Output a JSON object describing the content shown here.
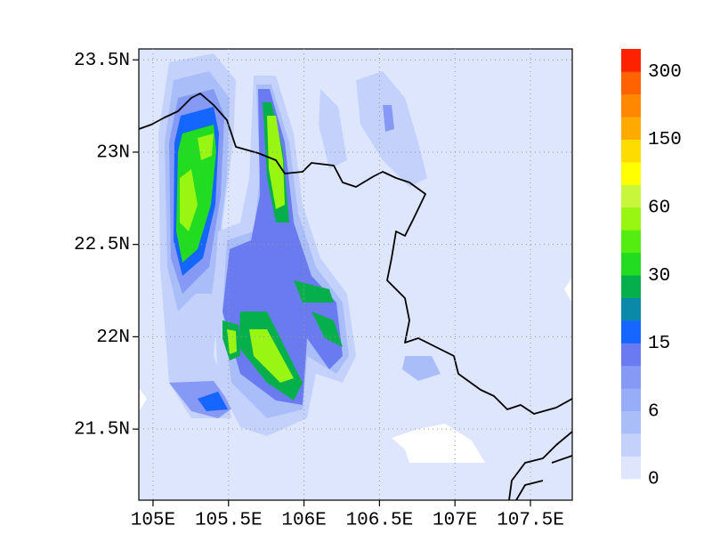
{
  "map": {
    "xlim": [
      104.906,
      107.777
    ],
    "ylim": [
      21.115,
      23.559
    ],
    "xticks": [
      {
        "value": 105,
        "label": "105E"
      },
      {
        "value": 105.5,
        "label": "105.5E"
      },
      {
        "value": 106,
        "label": "106E"
      },
      {
        "value": 106.5,
        "label": "106.5E"
      },
      {
        "value": 107,
        "label": "107E"
      },
      {
        "value": 107.5,
        "label": "107.5E"
      }
    ],
    "yticks": [
      {
        "value": 21.5,
        "label": "21.5N"
      },
      {
        "value": 22,
        "label": "22N"
      },
      {
        "value": 22.5,
        "label": "22.5N"
      },
      {
        "value": 23,
        "label": "23N"
      },
      {
        "value": 23.5,
        "label": "23.5N"
      }
    ],
    "grid": true,
    "colorbar": {
      "colors": [
        "#dde6fc",
        "#c4d2fb",
        "#a9bdf9",
        "#97adf7",
        "#8599f5",
        "#6a7bf1",
        "#1565ff",
        "#0a8aa8",
        "#05b04c",
        "#22dc22",
        "#55ec12",
        "#99f512",
        "#c8f63a",
        "#ffff00",
        "#ffdc00",
        "#ffaa00",
        "#ff8800",
        "#ff6200",
        "#ff2200"
      ],
      "ticks": [
        0,
        6,
        15,
        30,
        60,
        150,
        300
      ]
    }
  }
}
